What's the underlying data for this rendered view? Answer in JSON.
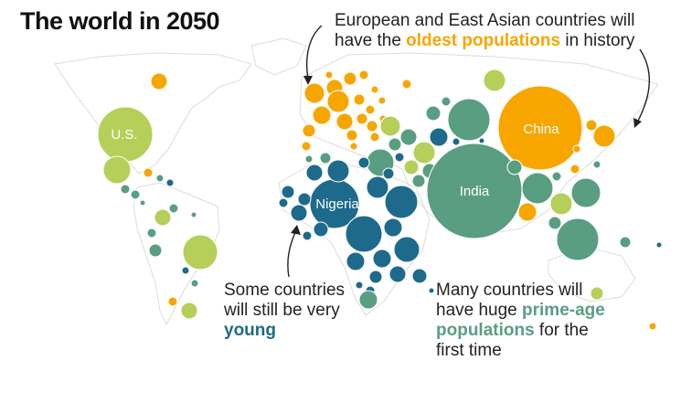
{
  "title": "The world in 2050",
  "annotations": {
    "oldest": {
      "line1": "European and East Asian countries will",
      "line2_pre": "have the ",
      "line2_highlight": "oldest populations",
      "line2_post": " in history"
    },
    "young": {
      "line1": "Some countries",
      "line2": "will still be very",
      "highlight": "young"
    },
    "prime": {
      "line1": "Many countries will",
      "line2_pre": "have huge ",
      "line2_highlight": "prime-age",
      "line3_highlight": "populations",
      "line3_post": " for the",
      "line4": "first time"
    }
  },
  "country_labels": {
    "us": "U.S.",
    "china": "China",
    "india": "India",
    "nigeria": "Nigeria"
  },
  "colors": {
    "oldest": "#f7a600",
    "prime": "#5a9e82",
    "young": "#1e6a8c",
    "transition": "#b5cf59",
    "land": "#e6e6e6",
    "text": "#222222"
  }
}
